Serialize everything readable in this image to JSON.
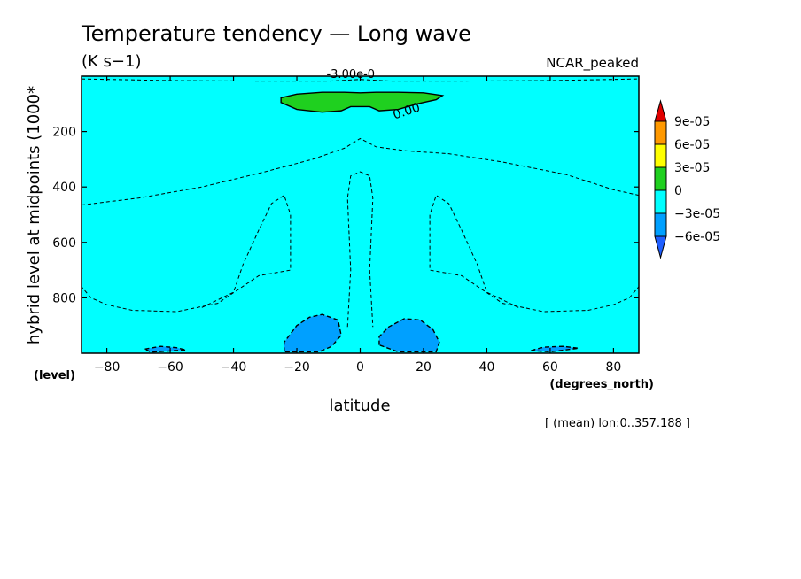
{
  "chart_data": {
    "type": "contour",
    "title": "Temperature tendency — Long wave",
    "units": "(K s−1)",
    "dataset": "NCAR_peaked",
    "xlabel": "latitude",
    "xunits": "(degrees_north)",
    "ylabel": "hybrid level at midpoints (1000*",
    "yunits": "(level)",
    "xlim": [
      -88,
      88
    ],
    "ylim": [
      1000,
      0
    ],
    "yticks": [
      200,
      400,
      600,
      800
    ],
    "xticks": [
      -80,
      -60,
      -40,
      -20,
      0,
      20,
      40,
      60,
      80
    ],
    "footer": "[ (mean) lon:0..357.188 ]",
    "contour_labels": [
      "-3.00e-0",
      "0.00"
    ],
    "colorbar": {
      "labels": [
        "9e-05",
        "6e-05",
        "3e-05",
        "0",
        "−3e-05",
        "−6e-05"
      ],
      "colors": [
        "#e00000",
        "#ff9900",
        "#ffff00",
        "#1fd01f",
        "#00ffff",
        "#00a0ff",
        "#1f5fff"
      ]
    },
    "regions": [
      {
        "level": "0 to 3e-05",
        "color": "#1fd01f",
        "description": "positive tendency near top, latitude -25 to 25",
        "boundary": [
          [
            -25,
            78
          ],
          [
            -20,
            65
          ],
          [
            -12,
            58
          ],
          [
            -5,
            58
          ],
          [
            0,
            60
          ],
          [
            5,
            58
          ],
          [
            12,
            58
          ],
          [
            20,
            60
          ],
          [
            26,
            70
          ],
          [
            24,
            85
          ],
          [
            18,
            100
          ],
          [
            12,
            120
          ],
          [
            6,
            125
          ],
          [
            3,
            110
          ],
          [
            -3,
            110
          ],
          [
            -6,
            125
          ],
          [
            -12,
            130
          ],
          [
            -20,
            120
          ],
          [
            -25,
            95
          ]
        ]
      },
      {
        "level": "-6e-05 to -3e-05",
        "color": "#00a0ff",
        "description": "southern hemisphere low-level minimum",
        "boundary": [
          [
            -24,
            995
          ],
          [
            -24,
            960
          ],
          [
            -20,
            900
          ],
          [
            -16,
            870
          ],
          [
            -12,
            860
          ],
          [
            -7,
            880
          ],
          [
            -6,
            935
          ],
          [
            -9,
            975
          ],
          [
            -13,
            995
          ]
        ]
      },
      {
        "level": "-6e-05 to -3e-05",
        "color": "#00a0ff",
        "description": "northern hemisphere low-level minimum",
        "boundary": [
          [
            6,
            970
          ],
          [
            6,
            940
          ],
          [
            9,
            905
          ],
          [
            14,
            875
          ],
          [
            19,
            880
          ],
          [
            23,
            915
          ],
          [
            25,
            960
          ],
          [
            24,
            995
          ],
          [
            12,
            995
          ]
        ]
      },
      {
        "level": "-6e-05 to -3e-05",
        "color": "#00a0ff",
        "description": "southern high-latitude near-surface minimum",
        "boundary": [
          [
            -68,
            985
          ],
          [
            -63,
            975
          ],
          [
            -58,
            980
          ],
          [
            -55,
            988
          ],
          [
            -66,
            996
          ]
        ]
      },
      {
        "level": "-6e-05 to -3e-05",
        "color": "#00a0ff",
        "description": "northern high-latitude near-surface minimum",
        "boundary": [
          [
            54,
            990
          ],
          [
            58,
            978
          ],
          [
            64,
            975
          ],
          [
            69,
            982
          ],
          [
            60,
            995
          ]
        ]
      }
    ],
    "contours": [
      {
        "label": "-3.00e-0",
        "style": "dashed",
        "points": [
          [
            -88,
            10
          ],
          [
            -60,
            16
          ],
          [
            -30,
            18
          ],
          [
            -10,
            18
          ],
          [
            0,
            12
          ],
          [
            10,
            18
          ],
          [
            30,
            18
          ],
          [
            60,
            16
          ],
          [
            88,
            10
          ]
        ]
      },
      {
        "label": "-3.00e-0",
        "style": "dashed",
        "points": [
          [
            -88,
            465
          ],
          [
            -70,
            440
          ],
          [
            -50,
            400
          ],
          [
            -30,
            345
          ],
          [
            -15,
            300
          ],
          [
            -5,
            260
          ],
          [
            0,
            225
          ],
          [
            5,
            255
          ],
          [
            15,
            270
          ],
          [
            28,
            280
          ],
          [
            45,
            310
          ],
          [
            65,
            355
          ],
          [
            80,
            410
          ],
          [
            88,
            430
          ]
        ]
      },
      {
        "label": "-3.00e-0",
        "style": "dashed",
        "points": [
          [
            -4,
            905
          ],
          [
            -3,
            700
          ],
          [
            -4,
            440
          ],
          [
            -3,
            360
          ],
          [
            0,
            345
          ],
          [
            3,
            360
          ],
          [
            4,
            440
          ],
          [
            3,
            700
          ],
          [
            4,
            905
          ]
        ]
      },
      {
        "label": "-3.00e-0",
        "style": "dashed",
        "points": [
          [
            -50,
            835
          ],
          [
            -40,
            780
          ],
          [
            -37,
            680
          ],
          [
            -32,
            555
          ],
          [
            -28,
            460
          ],
          [
            -24,
            430
          ],
          [
            -22,
            500
          ],
          [
            -22,
            700
          ],
          [
            -32,
            720
          ],
          [
            -45,
            820
          ],
          [
            -58,
            850
          ],
          [
            -72,
            845
          ],
          [
            -80,
            825
          ],
          [
            -85,
            800
          ],
          [
            -88,
            760
          ]
        ]
      },
      {
        "label": "-3.00e-0",
        "style": "dashed",
        "points": [
          [
            50,
            835
          ],
          [
            40,
            780
          ],
          [
            37,
            680
          ],
          [
            32,
            555
          ],
          [
            28,
            460
          ],
          [
            24,
            430
          ],
          [
            22,
            500
          ],
          [
            22,
            700
          ],
          [
            32,
            720
          ],
          [
            45,
            820
          ],
          [
            58,
            850
          ],
          [
            72,
            845
          ],
          [
            80,
            825
          ],
          [
            85,
            800
          ],
          [
            88,
            760
          ]
        ]
      }
    ]
  }
}
